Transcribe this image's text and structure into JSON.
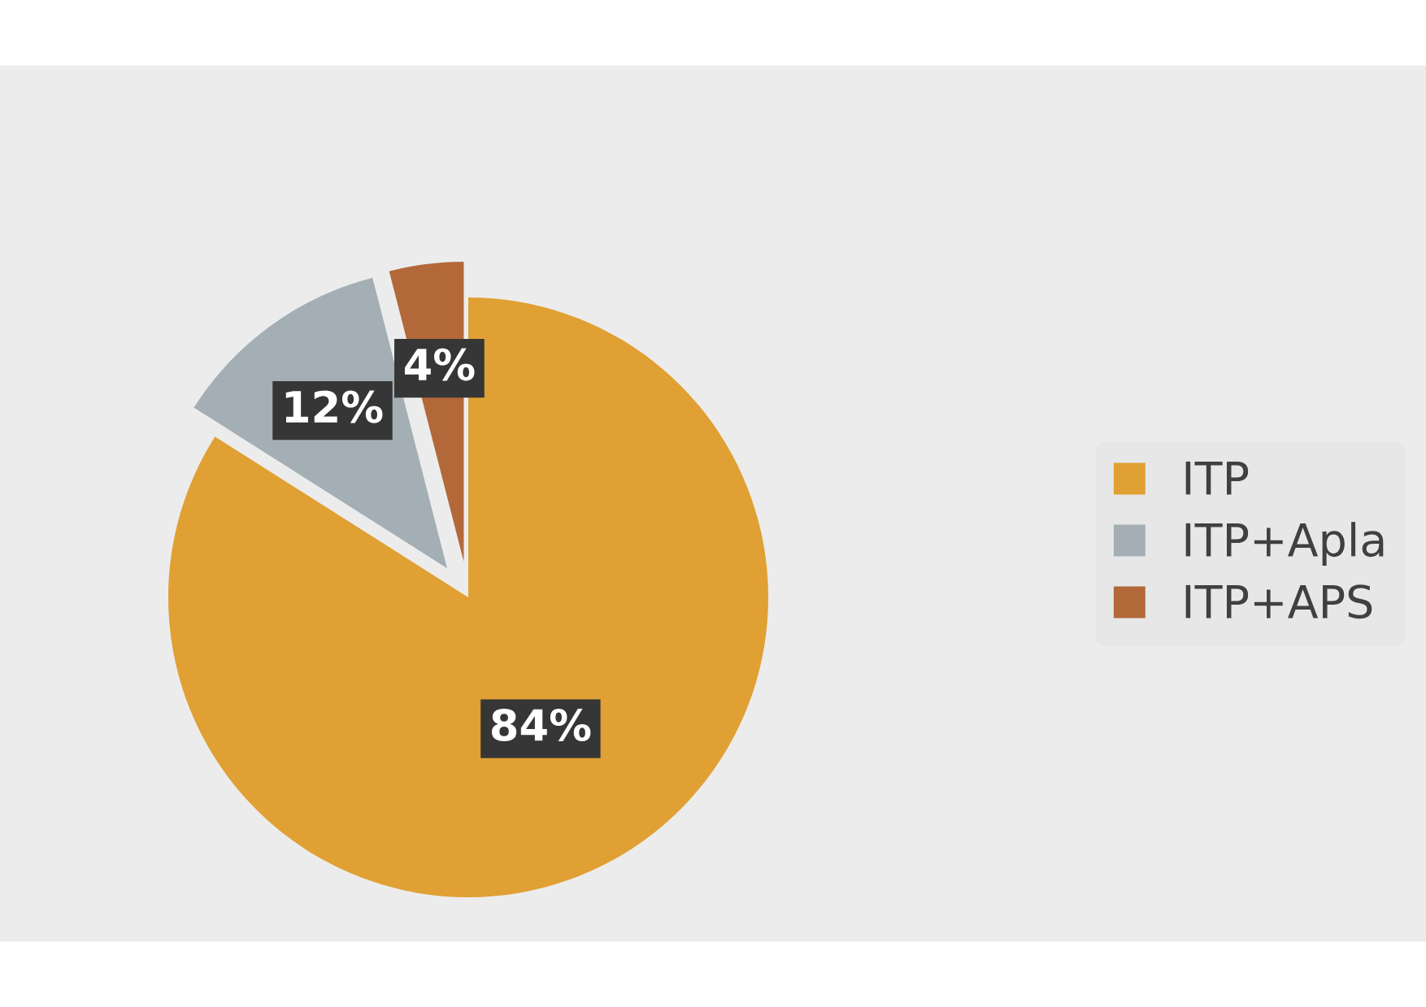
{
  "chart_data": {
    "type": "pie",
    "categories": [
      "ITP",
      "ITP+Apla",
      "ITP+APS"
    ],
    "values": [
      84,
      12,
      4
    ],
    "colors": [
      "#e0a033",
      "#a3afb5",
      "#b3683a"
    ],
    "value_labels": [
      "84%",
      "12%",
      "4%"
    ],
    "legend": "right"
  }
}
